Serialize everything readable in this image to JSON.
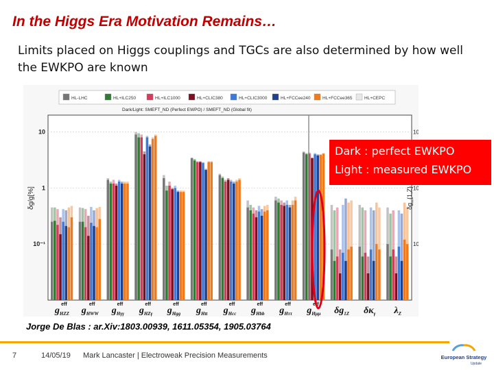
{
  "slide": {
    "title": "In the Higgs Era Motivation Remains…",
    "subtitle": "Limits placed on Higgs couplings and TGCs are also determined by how well the EWKPO are known",
    "citation": "Jorge De Blas : ar.Xiv:1803.00939, 1611.05354, 1905.03764",
    "overlay_line1": "Dark : perfect EWKPO",
    "overlay_line2": "Light : measured EWKPO"
  },
  "footer": {
    "page": "7",
    "date": "14/05/19",
    "author": "Mark Lancaster | Electroweak Precision Measurements",
    "logo_line1": "European Strategy",
    "logo_line2": "Update"
  },
  "colors": {
    "title": "#c00000",
    "overlay_bg": "#ff0000",
    "overlay_ellipse": "#e0001a",
    "footer_line": "#f2a800"
  },
  "chart_data": {
    "type": "bar",
    "yscale": "log",
    "ylim_left": [
      0.01,
      20
    ],
    "ylim_right_labels": [
      "10⁻²",
      "10⁻³",
      "10⁻⁴"
    ],
    "ylabel_left": "δg/g[%]",
    "ylabel_right": "δg_{1,Z}",
    "header_note": "Dark/Light: SMEFT_ND (Perfect EWPO) / SMEFT_ND (Global fit)",
    "legend": [
      "HL-LHC",
      "HL+ILC250",
      "HL+ILC1000",
      "HL+CLIC380",
      "HL+CLIC3000",
      "HL+FCCee240",
      "HL+FCCee365",
      "HL+CEPC"
    ],
    "series_colors": [
      "#777777",
      "#2e7d32",
      "#d33c5a",
      "#7a1020",
      "#3d7ad8",
      "#1f3f8f",
      "#f07a1c",
      "#e8e8e8"
    ],
    "categories": [
      "g_HZZ",
      "g_HWW",
      "g_Hγγ",
      "g_HZγ",
      "g_Hgg",
      "g_Htt",
      "g_Hcc",
      "g_Hbb",
      "g_Hττ",
      "g_Hμμ",
      "δg_1Z",
      "δκ_γ",
      "λ_Z"
    ],
    "tick_labels": [
      {
        "main": "g",
        "sub": "HZZ",
        "sup": "eff"
      },
      {
        "main": "g",
        "sub": "HWW",
        "sup": "eff"
      },
      {
        "main": "g",
        "sub": "Hγγ",
        "sup": "eff"
      },
      {
        "main": "g",
        "sub": "HZγ",
        "sup": "eff"
      },
      {
        "main": "g",
        "sub": "Hgg",
        "sup": "eff"
      },
      {
        "main": "g",
        "sub": "Htt",
        "sup": "eff"
      },
      {
        "main": "g",
        "sub": "Hcc",
        "sup": "eff"
      },
      {
        "main": "g",
        "sub": "Hbb",
        "sup": "eff"
      },
      {
        "main": "g",
        "sub": "Hττ",
        "sup": "eff"
      },
      {
        "main": "g",
        "sub": "Hμμ",
        "sup": "eff"
      },
      {
        "main": "δg",
        "sub": "1Z",
        "sup": ""
      },
      {
        "main": "δκ",
        "sub": "γ",
        "sup": ""
      },
      {
        "main": "λ",
        "sub": "Z",
        "sup": ""
      }
    ],
    "yticks": [
      {
        "value": 10,
        "label": "10"
      },
      {
        "value": 1,
        "label": "1"
      },
      {
        "value": 0.1,
        "label": "10⁻¹"
      }
    ],
    "measured": [
      [
        0.45,
        0.45,
        0.42,
        0.3,
        0.42,
        0.4,
        0.45,
        0.48
      ],
      [
        0.45,
        0.44,
        0.42,
        0.32,
        0.46,
        0.4,
        0.44,
        0.46
      ],
      [
        1.5,
        1.3,
        1.4,
        1.2,
        1.4,
        1.3,
        1.3,
        1.3
      ],
      [
        10.0,
        9.5,
        9.0,
        4.5,
        8.5,
        6.0,
        8.0,
        9.0
      ],
      [
        1.7,
        1.1,
        1.3,
        1.0,
        1.1,
        0.9,
        0.9,
        0.9
      ],
      [
        3.5,
        3.3,
        3.0,
        3.0,
        2.9,
        2.2,
        3.0,
        3.0
      ],
      [
        1.8,
        1.6,
        1.4,
        1.5,
        1.4,
        1.3,
        1.4,
        1.5
      ],
      [
        0.6,
        0.5,
        0.45,
        0.4,
        0.48,
        0.42,
        0.48,
        0.5
      ],
      [
        0.7,
        0.65,
        0.6,
        0.55,
        0.6,
        0.5,
        0.6,
        0.7
      ],
      [
        4.5,
        4.2,
        4.3,
        3.5,
        4.2,
        4.0,
        4.0,
        4.2
      ],
      [
        0.5,
        0.4,
        0.45,
        0.08,
        0.5,
        0.65,
        0.55,
        0.6
      ],
      [
        0.5,
        0.45,
        0.4,
        0.06,
        0.45,
        0.4,
        0.55,
        0.45
      ],
      [
        0.45,
        0.35,
        0.4,
        0.06,
        0.4,
        0.35,
        0.55,
        0.45
      ]
    ],
    "perfect": [
      [
        0.25,
        0.26,
        0.22,
        0.15,
        0.25,
        0.21,
        0.2,
        0.3
      ],
      [
        0.25,
        0.25,
        0.2,
        0.14,
        0.24,
        0.21,
        0.2,
        0.28
      ],
      [
        1.4,
        1.2,
        1.2,
        1.1,
        1.3,
        1.2,
        1.2,
        1.2
      ],
      [
        9.0,
        8.0,
        8.0,
        4.0,
        8.0,
        5.5,
        7.5,
        8.5
      ],
      [
        1.5,
        0.9,
        1.1,
        0.95,
        1.0,
        0.85,
        0.85,
        0.85
      ],
      [
        3.4,
        3.1,
        2.9,
        2.9,
        2.8,
        2.1,
        2.9,
        2.9
      ],
      [
        1.7,
        1.5,
        1.3,
        1.4,
        1.3,
        1.2,
        1.3,
        1.4
      ],
      [
        0.45,
        0.4,
        0.35,
        0.3,
        0.38,
        0.32,
        0.38,
        0.4
      ],
      [
        0.6,
        0.55,
        0.5,
        0.48,
        0.5,
        0.45,
        0.5,
        0.6
      ],
      [
        4.3,
        4.0,
        4.1,
        3.4,
        4.0,
        3.8,
        3.9,
        4.1
      ],
      [
        0.08,
        0.05,
        0.06,
        0.03,
        0.07,
        0.05,
        0.08,
        0.09
      ],
      [
        0.09,
        0.06,
        0.07,
        0.03,
        0.08,
        0.05,
        0.1,
        0.08
      ],
      [
        0.1,
        0.06,
        0.08,
        0.03,
        0.09,
        0.05,
        0.12,
        0.1
      ]
    ]
  }
}
